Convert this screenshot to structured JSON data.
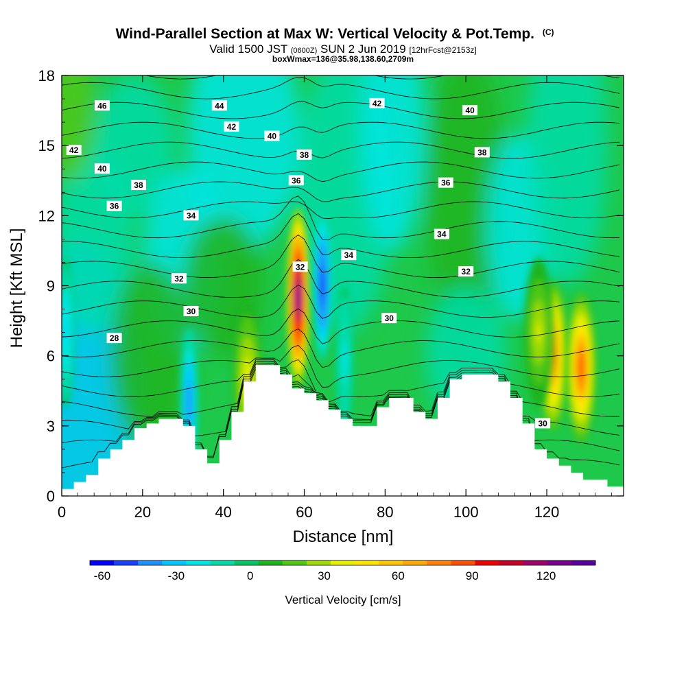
{
  "header": {
    "title_main": "Wind-Parallel Section at Max W: Vertical Velocity & Pot.Temp.",
    "title_mark": "(C)",
    "valid_prefix": "Valid 1500 JST",
    "valid_zulu": "(0600Z)",
    "valid_date": "SUN 2 Jun 2019",
    "valid_fcst": "[12hrFcst@2153z]",
    "boxwmax": "boxWmax=136@35.98,138.60,2709m"
  },
  "chart_data": {
    "type": "heatmap",
    "title": "Wind-Parallel Section at Max W: Vertical Velocity & Pot.Temp. (C)",
    "xlabel": "Distance [nm]",
    "ylabel": "Height [Kft MSL]",
    "xlim": [
      0,
      139
    ],
    "ylim": [
      0,
      18
    ],
    "x_ticks": [
      0,
      20,
      40,
      60,
      80,
      100,
      120
    ],
    "y_ticks": [
      0,
      3,
      6,
      9,
      12,
      15,
      18
    ],
    "colorbar": {
      "label": "Vertical Velocity [cm/s]",
      "ticks": [
        -60,
        -30,
        0,
        30,
        60,
        90,
        120
      ],
      "min": -65,
      "max": 140,
      "colors": [
        "#0000ff",
        "#1a40ff",
        "#1e90ff",
        "#00c8ff",
        "#00e6e6",
        "#00dcaa",
        "#00c864",
        "#1eb41e",
        "#50c814",
        "#a0dc00",
        "#e6f000",
        "#ffe600",
        "#ffc800",
        "#ffaa00",
        "#ff8200",
        "#ff5000",
        "#f00000",
        "#c80028",
        "#a0006e",
        "#78008c",
        "#5a00a0"
      ]
    },
    "terrain_profile": {
      "x": [
        0,
        3,
        6,
        9,
        12,
        15,
        18,
        21,
        24,
        27,
        30,
        33,
        36,
        39,
        42,
        45,
        48,
        51,
        54,
        57,
        60,
        63,
        66,
        69,
        72,
        75,
        78,
        81,
        84,
        87,
        90,
        93,
        96,
        99,
        102,
        105,
        108,
        111,
        114,
        117,
        120,
        123,
        126,
        129,
        132,
        135,
        139
      ],
      "kft": [
        0.3,
        0.6,
        0.9,
        1.6,
        2.0,
        2.4,
        2.9,
        3.1,
        3.3,
        3.3,
        3.0,
        2.0,
        1.4,
        2.4,
        3.6,
        4.9,
        5.6,
        5.6,
        5.2,
        4.6,
        4.4,
        4.1,
        3.7,
        3.3,
        3.0,
        3.0,
        3.8,
        4.2,
        4.2,
        3.6,
        3.3,
        4.2,
        5.0,
        5.2,
        5.2,
        5.2,
        4.9,
        4.2,
        3.1,
        2.0,
        1.6,
        1.3,
        1.0,
        0.7,
        0.7,
        0.4,
        0.3
      ]
    },
    "updrafts": [
      {
        "x": 58.5,
        "kft": 8.5,
        "peak_cm_s": 136
      },
      {
        "x": 121.5,
        "kft": 6.0,
        "peak_cm_s": 72
      },
      {
        "x": 128.5,
        "kft": 5.5,
        "peak_cm_s": 85
      },
      {
        "x": 118.0,
        "kft": 7.0,
        "peak_cm_s": 35
      },
      {
        "x": 46.0,
        "kft": 5.0,
        "peak_cm_s": 40
      }
    ],
    "downdrafts": [
      {
        "x": 64.5,
        "kft": 9.0,
        "peak_cm_s": -60
      },
      {
        "x": 31.5,
        "kft": 4.0,
        "peak_cm_s": -45
      },
      {
        "x": 1.0,
        "kft": 7.0,
        "peak_cm_s": -28
      },
      {
        "x": 70.0,
        "kft": 5.8,
        "peak_cm_s": -20
      }
    ],
    "theta_contours": [
      {
        "value": 28,
        "label_at": [
          13,
          6.75
        ]
      },
      {
        "value": 30,
        "label_at": [
          32,
          7.9
        ]
      },
      {
        "value": 30,
        "label_at": [
          81,
          7.6
        ]
      },
      {
        "value": 30,
        "label_at": [
          119,
          3.1
        ]
      },
      {
        "value": 32,
        "label_at": [
          29,
          9.3
        ]
      },
      {
        "value": 32,
        "label_at": [
          59,
          9.8
        ]
      },
      {
        "value": 32,
        "label_at": [
          100,
          9.6
        ]
      },
      {
        "value": 34,
        "label_at": [
          32,
          12.0
        ]
      },
      {
        "value": 34,
        "label_at": [
          71,
          10.3
        ]
      },
      {
        "value": 34,
        "label_at": [
          94,
          11.2
        ]
      },
      {
        "value": 36,
        "label_at": [
          13,
          12.4
        ]
      },
      {
        "value": 36,
        "label_at": [
          58,
          13.5
        ]
      },
      {
        "value": 36,
        "label_at": [
          95,
          13.4
        ]
      },
      {
        "value": 38,
        "label_at": [
          19,
          13.3
        ]
      },
      {
        "value": 38,
        "label_at": [
          60,
          14.6
        ]
      },
      {
        "value": 38,
        "label_at": [
          104,
          14.7
        ]
      },
      {
        "value": 40,
        "label_at": [
          10,
          14.0
        ]
      },
      {
        "value": 40,
        "label_at": [
          52,
          15.4
        ]
      },
      {
        "value": 40,
        "label_at": [
          101,
          16.5
        ]
      },
      {
        "value": 42,
        "label_at": [
          3,
          14.8
        ]
      },
      {
        "value": 42,
        "label_at": [
          42,
          15.8
        ]
      },
      {
        "value": 42,
        "label_at": [
          78,
          16.8
        ]
      },
      {
        "value": 44,
        "label_at": [
          39,
          16.7
        ]
      },
      {
        "value": 46,
        "label_at": [
          10,
          16.7
        ]
      }
    ]
  }
}
